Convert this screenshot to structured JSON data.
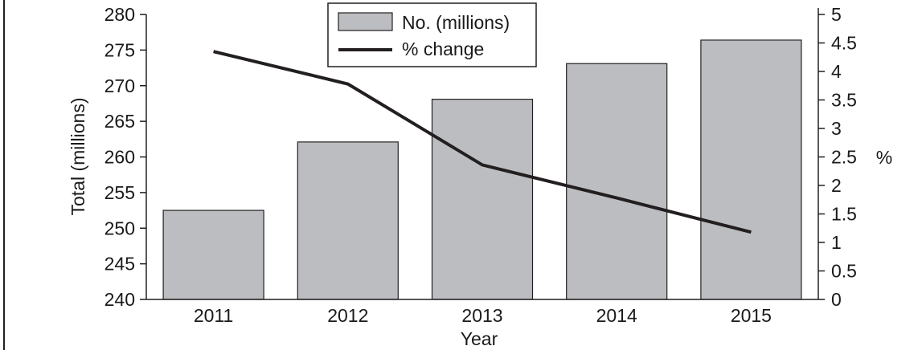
{
  "chart_data": {
    "type": "bar",
    "categories": [
      "2011",
      "2012",
      "2013",
      "2014",
      "2015"
    ],
    "series": [
      {
        "name": "No. (millions)",
        "type": "bar",
        "axis": "left",
        "color": "#bcbdc1",
        "values": [
          252.5,
          262.1,
          268.1,
          273.1,
          276.4
        ]
      },
      {
        "name": "% change",
        "type": "line",
        "axis": "right",
        "color": "#231f20",
        "values": [
          4.35,
          3.78,
          2.36,
          1.78,
          1.18
        ]
      }
    ],
    "xlabel": "Year",
    "ylabel": "Total (millions)",
    "y2label": "%",
    "ylim": [
      240,
      280
    ],
    "y2lim": [
      0,
      5
    ],
    "yticks": [
      "240",
      "245",
      "250",
      "255",
      "260",
      "265",
      "270",
      "275",
      "280"
    ],
    "y2ticks": [
      "0",
      "0.5",
      "1",
      "1.5",
      "2",
      "2.5",
      "3",
      "3.5",
      "4",
      "4.5",
      "5"
    ],
    "grid": false,
    "legend_position": "top-center"
  }
}
